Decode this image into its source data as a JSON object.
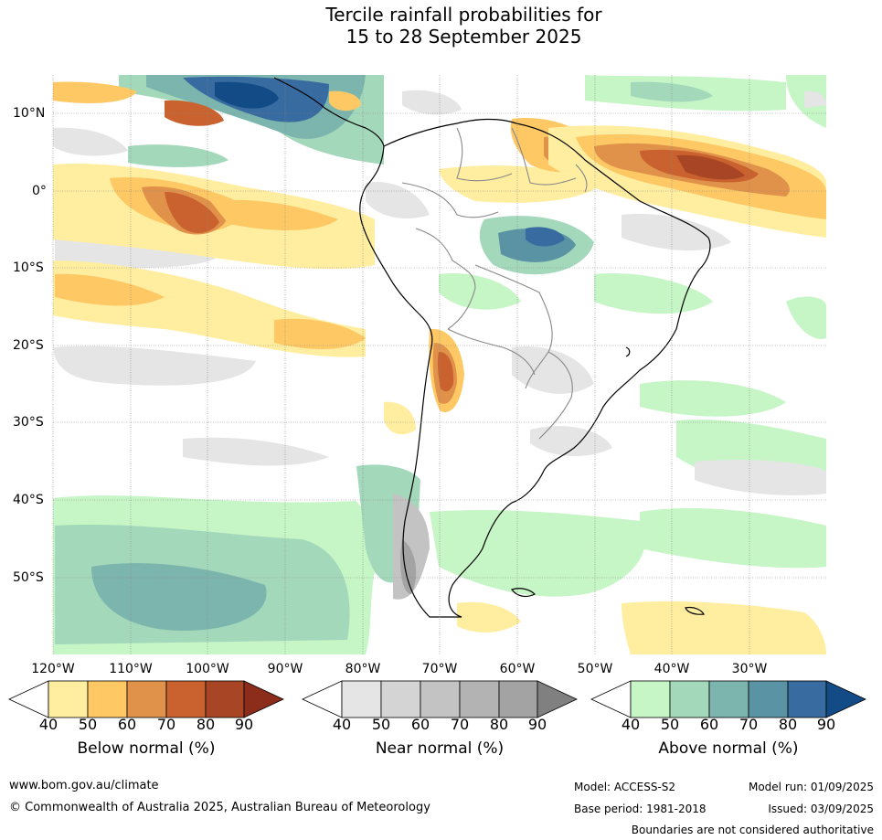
{
  "title": {
    "line1": "Tercile rainfall probabilities for",
    "line2": "15 to 28 September 2025"
  },
  "map": {
    "longitude_labels": [
      "120°W",
      "110°W",
      "100°W",
      "90°W",
      "80°W",
      "70°W",
      "60°W",
      "50°W",
      "40°W",
      "30°W"
    ],
    "latitude_labels": [
      "10°N",
      "0°",
      "10°S",
      "20°S",
      "30°S",
      "40°S",
      "50°S"
    ]
  },
  "colorbars": [
    {
      "label": "Below normal (%)",
      "ticks": [
        "40",
        "50",
        "60",
        "70",
        "80",
        "90"
      ],
      "colors": [
        "#ffffff",
        "#ffeda0",
        "#fec864",
        "#e0914a",
        "#c9622f",
        "#a84525",
        "#8c2d1c"
      ]
    },
    {
      "label": "Near normal (%)",
      "ticks": [
        "40",
        "50",
        "60",
        "70",
        "80",
        "90"
      ],
      "colors": [
        "#ffffff",
        "#e5e5e5",
        "#d4d4d4",
        "#c3c3c3",
        "#b3b3b3",
        "#a3a3a3",
        "#808080"
      ]
    },
    {
      "label": "Above normal (%)",
      "ticks": [
        "40",
        "50",
        "60",
        "70",
        "80",
        "90"
      ],
      "colors": [
        "#ffffff",
        "#c6f5c6",
        "#a3d8bb",
        "#7cb5ad",
        "#5a93a3",
        "#386ba0",
        "#124b86"
      ]
    }
  ],
  "footer": {
    "website": "www.bom.gov.au/climate",
    "copyright": "© Commonwealth of Australia 2025, Australian Bureau of Meteorology",
    "model": "Model: ACCESS-S2",
    "base_period": "Base period: 1981-2018",
    "model_run": "Model run: 01/09/2025",
    "issued": "Issued: 03/09/2025",
    "disclaimer": "Boundaries are not considered authoritative"
  }
}
